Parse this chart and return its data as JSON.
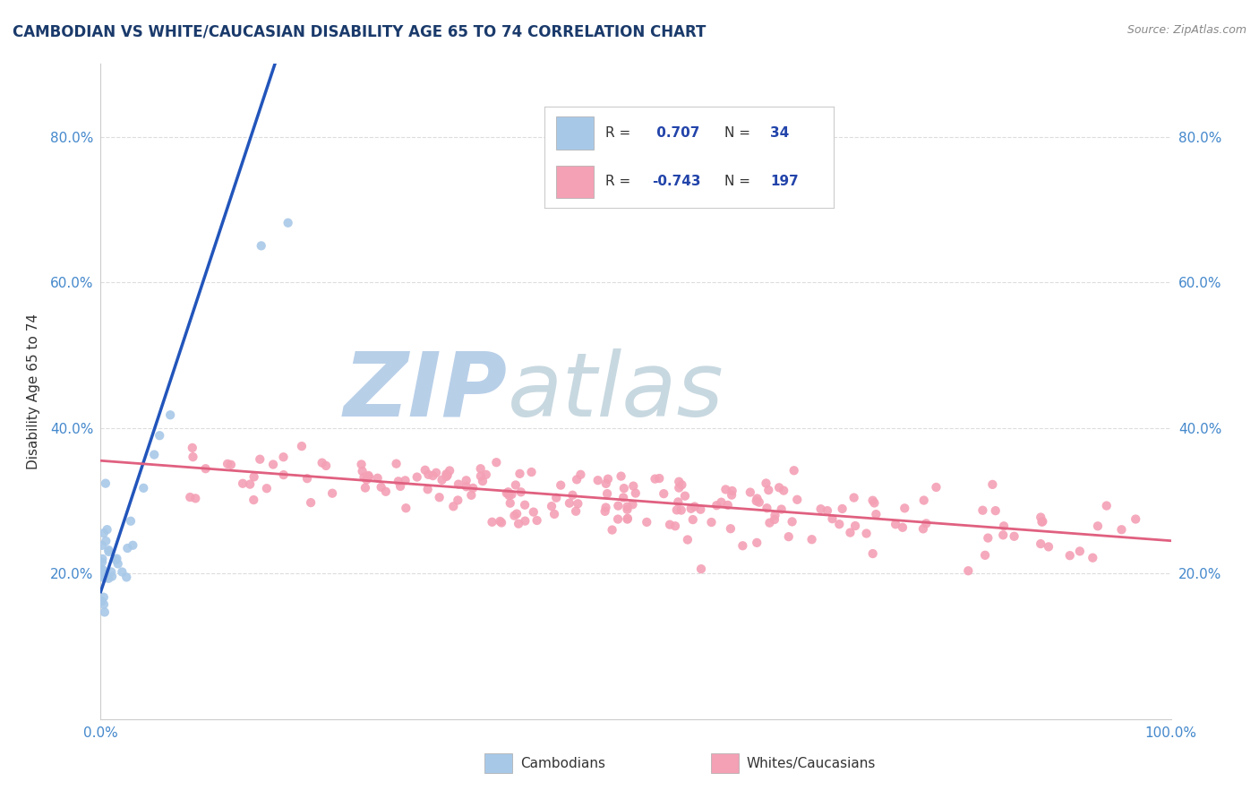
{
  "title": "CAMBODIAN VS WHITE/CAUCASIAN DISABILITY AGE 65 TO 74 CORRELATION CHART",
  "source_text": "Source: ZipAtlas.com",
  "ylabel": "Disability Age 65 to 74",
  "xlim": [
    0.0,
    1.0
  ],
  "ylim": [
    0.0,
    0.9
  ],
  "x_ticks": [
    0.0,
    0.1,
    0.2,
    0.3,
    0.4,
    0.5,
    0.6,
    0.7,
    0.8,
    0.9,
    1.0
  ],
  "x_tick_labels": [
    "0.0%",
    "",
    "",
    "",
    "",
    "",
    "",
    "",
    "",
    "",
    "100.0%"
  ],
  "y_ticks": [
    0.2,
    0.4,
    0.6,
    0.8
  ],
  "y_tick_labels": [
    "20.0%",
    "40.0%",
    "60.0%",
    "80.0%"
  ],
  "cambodian_color": "#a8c8e8",
  "white_color": "#f4a0b5",
  "cambodian_line_color": "#2255bb",
  "white_line_color": "#e06080",
  "watermark_zip_color": "#b8cfe8",
  "watermark_atlas_color": "#c8d8e0",
  "R_cambodian": 0.707,
  "N_cambodian": 34,
  "R_white": -0.743,
  "N_white": 197,
  "title_color": "#1a3a6b",
  "source_color": "#888888",
  "tick_label_color": "#4488cc",
  "grid_color": "#dddddd",
  "legend_text_color": "#2244aa",
  "legend_label_color": "#333333",
  "cam_line_x0": 0.0,
  "cam_line_y0": 0.175,
  "cam_line_x1": 0.165,
  "cam_line_y1": 0.91,
  "white_line_x0": 0.0,
  "white_line_y0": 0.355,
  "white_line_x1": 1.0,
  "white_line_y1": 0.245
}
